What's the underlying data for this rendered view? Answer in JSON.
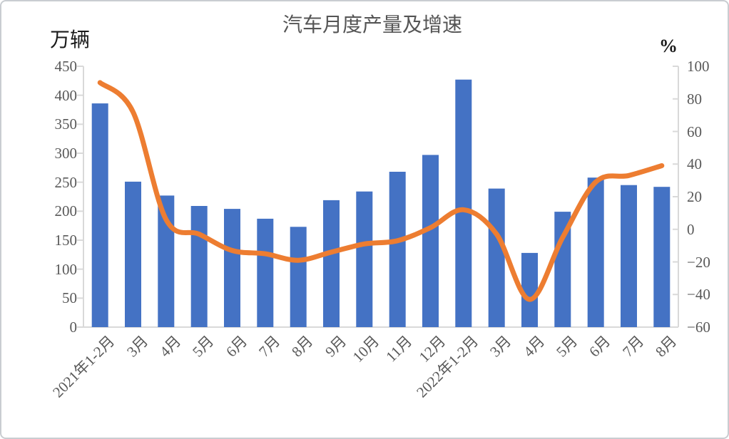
{
  "chart_data": {
    "type": "bar+line combo",
    "title": "汽车月度产量及增速",
    "categories": [
      "2021年1-2月",
      "3月",
      "4月",
      "5月",
      "6月",
      "7月",
      "8月",
      "9月",
      "10月",
      "11月",
      "12月",
      "2022年1-2月",
      "3月",
      "4月",
      "5月",
      "6月",
      "7月",
      "8月"
    ],
    "series": [
      {
        "name": "产量",
        "type": "bar",
        "axis": "left",
        "unit": "万辆",
        "color": "#4472C4",
        "values": [
          386,
          251,
          227,
          209,
          204,
          187,
          173,
          219,
          234,
          268,
          297,
          427,
          239,
          128,
          199,
          258,
          245,
          242
        ]
      },
      {
        "name": "增速",
        "type": "line",
        "axis": "right",
        "unit": "%",
        "color": "#ED7D31",
        "smooth": true,
        "values": [
          90,
          72,
          6,
          -3,
          -13,
          -15,
          -19,
          -14,
          -9,
          -7,
          1,
          12,
          -3,
          -43,
          -5,
          29,
          33,
          39
        ]
      }
    ],
    "left_axis": {
      "unit": "万辆",
      "min": 0,
      "max": 450,
      "tick_step": 50,
      "ticks": [
        450,
        400,
        350,
        300,
        250,
        200,
        150,
        100,
        50,
        0
      ]
    },
    "right_axis": {
      "unit": "%",
      "min": -60,
      "max": 100,
      "tick_step": 20,
      "ticks": [
        100,
        80,
        60,
        40,
        20,
        0,
        -20,
        -40,
        -60
      ]
    },
    "legend": "none",
    "grid": "off"
  },
  "colors": {
    "bar": "#4472C4",
    "line": "#ED7D31",
    "axis_line": "#D9D9D9",
    "tick_text": "#595959",
    "title_text": "#555555",
    "unit_text": "#1A1A1A"
  }
}
